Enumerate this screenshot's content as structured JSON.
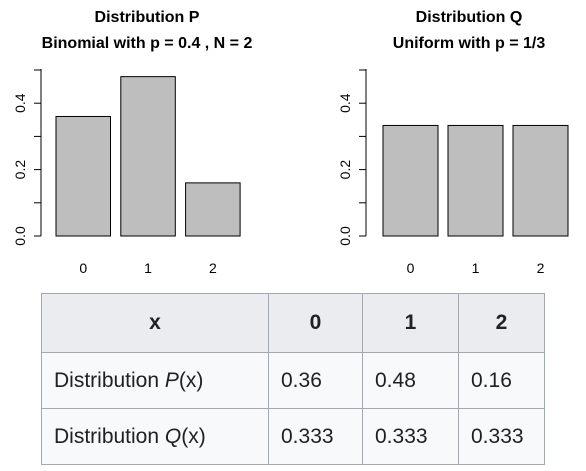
{
  "chart_data": [
    {
      "type": "bar",
      "title": "Distribution P",
      "subtitle": "Binomial with p = 0.4 , N = 2",
      "categories": [
        "0",
        "1",
        "2"
      ],
      "values": [
        0.36,
        0.48,
        0.16
      ],
      "ylim": [
        0,
        0.5
      ],
      "yticks": [
        "0.0",
        "0.2",
        "0.4"
      ],
      "bar_color": "#bebebe"
    },
    {
      "type": "bar",
      "title": "Distribution Q",
      "subtitle": "Uniform with p = 1/3",
      "categories": [
        "0",
        "1",
        "2"
      ],
      "values": [
        0.333,
        0.333,
        0.333
      ],
      "ylim": [
        0,
        0.5
      ],
      "yticks": [
        "0.0",
        "0.2",
        "0.4"
      ],
      "bar_color": "#bebebe"
    }
  ],
  "table": {
    "header": [
      "x",
      "0",
      "1",
      "2"
    ],
    "rows": [
      {
        "label_prefix": "Distribution ",
        "label_var": "P",
        "label_suffix": "(x)",
        "values": [
          "0.36",
          "0.48",
          "0.16"
        ]
      },
      {
        "label_prefix": "Distribution ",
        "label_var": "Q",
        "label_suffix": "(x)",
        "values": [
          "0.333",
          "0.333",
          "0.333"
        ]
      }
    ]
  }
}
